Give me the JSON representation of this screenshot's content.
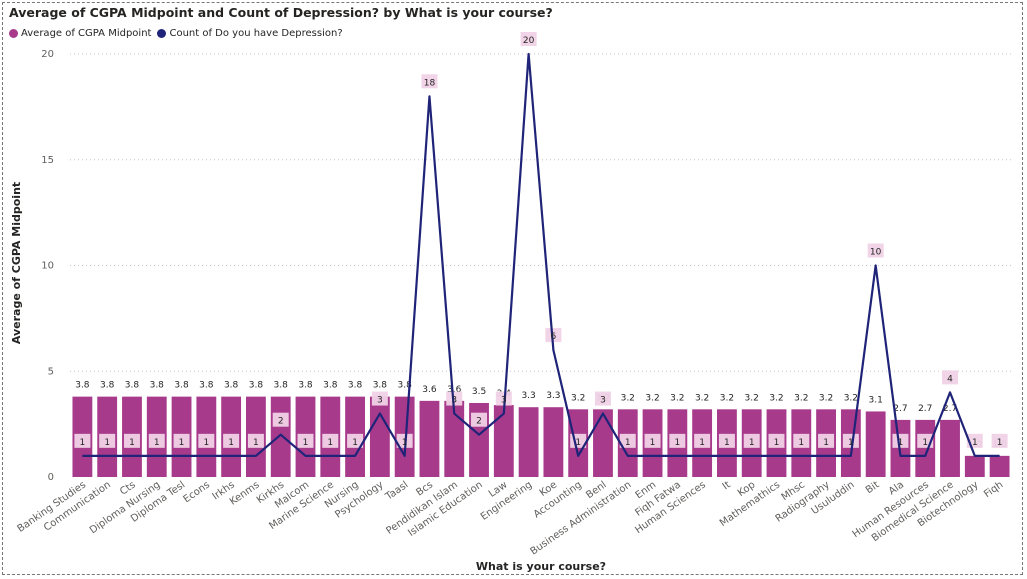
{
  "chart_data": {
    "type": "bar+line",
    "title": "Average of CGPA Midpoint and Count of Depression? by What is your course?",
    "xlabel": "What is your course?",
    "ylabel": "Average of CGPA Midpoint",
    "ylim": [
      0,
      20
    ],
    "yticks": [
      0,
      5,
      10,
      15,
      20
    ],
    "legend_position": "top-left",
    "grid": true,
    "colors": {
      "bar": "#A83A8C",
      "line": "#1F2478",
      "label_bg": "#F0D2E6"
    },
    "categories": [
      "Banking Studies",
      "Communication",
      "Cts",
      "Diploma Nursing",
      "Diploma Tesl",
      "Econs",
      "Irkhs",
      "Kenms",
      "Kirkhs",
      "Malcom",
      "Marine Science",
      "Nursing",
      "Psychology",
      "Taasl",
      "Bcs",
      "Pendidikan Islam",
      "Islamic Education",
      "Law",
      "Engineering",
      "Koe",
      "Accounting",
      "Benl",
      "Business Administration",
      "Enm",
      "Fiqh Fatwa",
      "Human Sciences",
      "It",
      "Kop",
      "Mathemathics",
      "Mhsc",
      "Radiography",
      "Usuluddin",
      "Bit",
      "Ala",
      "Human Resources",
      "Biomedical Science",
      "Biotechnology",
      "Fiqh"
    ],
    "series": [
      {
        "name": "Average of CGPA Midpoint",
        "type": "bar",
        "values": [
          3.8,
          3.8,
          3.8,
          3.8,
          3.8,
          3.8,
          3.8,
          3.8,
          3.8,
          3.8,
          3.8,
          3.8,
          3.8,
          3.8,
          3.6,
          3.6,
          3.5,
          3.4,
          3.3,
          3.3,
          3.2,
          3.2,
          3.2,
          3.2,
          3.2,
          3.2,
          3.2,
          3.2,
          3.2,
          3.2,
          3.2,
          3.2,
          3.1,
          2.7,
          2.7,
          2.7,
          1.0,
          1.0
        ],
        "labels": [
          "3.8",
          "3.8",
          "3.8",
          "3.8",
          "3.8",
          "3.8",
          "3.8",
          "3.8",
          "3.8",
          "3.8",
          "3.8",
          "3.8",
          "3.8",
          "3.8",
          "3.6",
          "3.6",
          "3.5",
          "3.4",
          "3.3",
          "3.3",
          "3.2",
          "3.2",
          "3.2",
          "3.2",
          "3.2",
          "3.2",
          "3.2",
          "3.2",
          "3.2",
          "3.2",
          "3.2",
          "3.2",
          "3.1",
          "2.7",
          "2.7",
          "2.7",
          "1.0",
          "1.0"
        ]
      },
      {
        "name": "Count of Do you have Depression?",
        "type": "line",
        "values": [
          1,
          1,
          1,
          1,
          1,
          1,
          1,
          1,
          2,
          1,
          1,
          1,
          3,
          1,
          18,
          3,
          2,
          3,
          20,
          6,
          1,
          3,
          1,
          1,
          1,
          1,
          1,
          1,
          1,
          1,
          1,
          1,
          10,
          1,
          1,
          4,
          1,
          1
        ],
        "labels": [
          "1",
          "1",
          "1",
          "1",
          "1",
          "1",
          "1",
          "1",
          "2",
          "1",
          "1",
          "1",
          "3",
          "1",
          "18",
          "3",
          "2",
          "3",
          "20",
          "6",
          "1",
          "3",
          "1",
          "1",
          "1",
          "1",
          "1",
          "1",
          "1",
          "1",
          "1",
          "1",
          "10",
          "1",
          "1",
          "4",
          "1",
          "1"
        ]
      }
    ]
  }
}
